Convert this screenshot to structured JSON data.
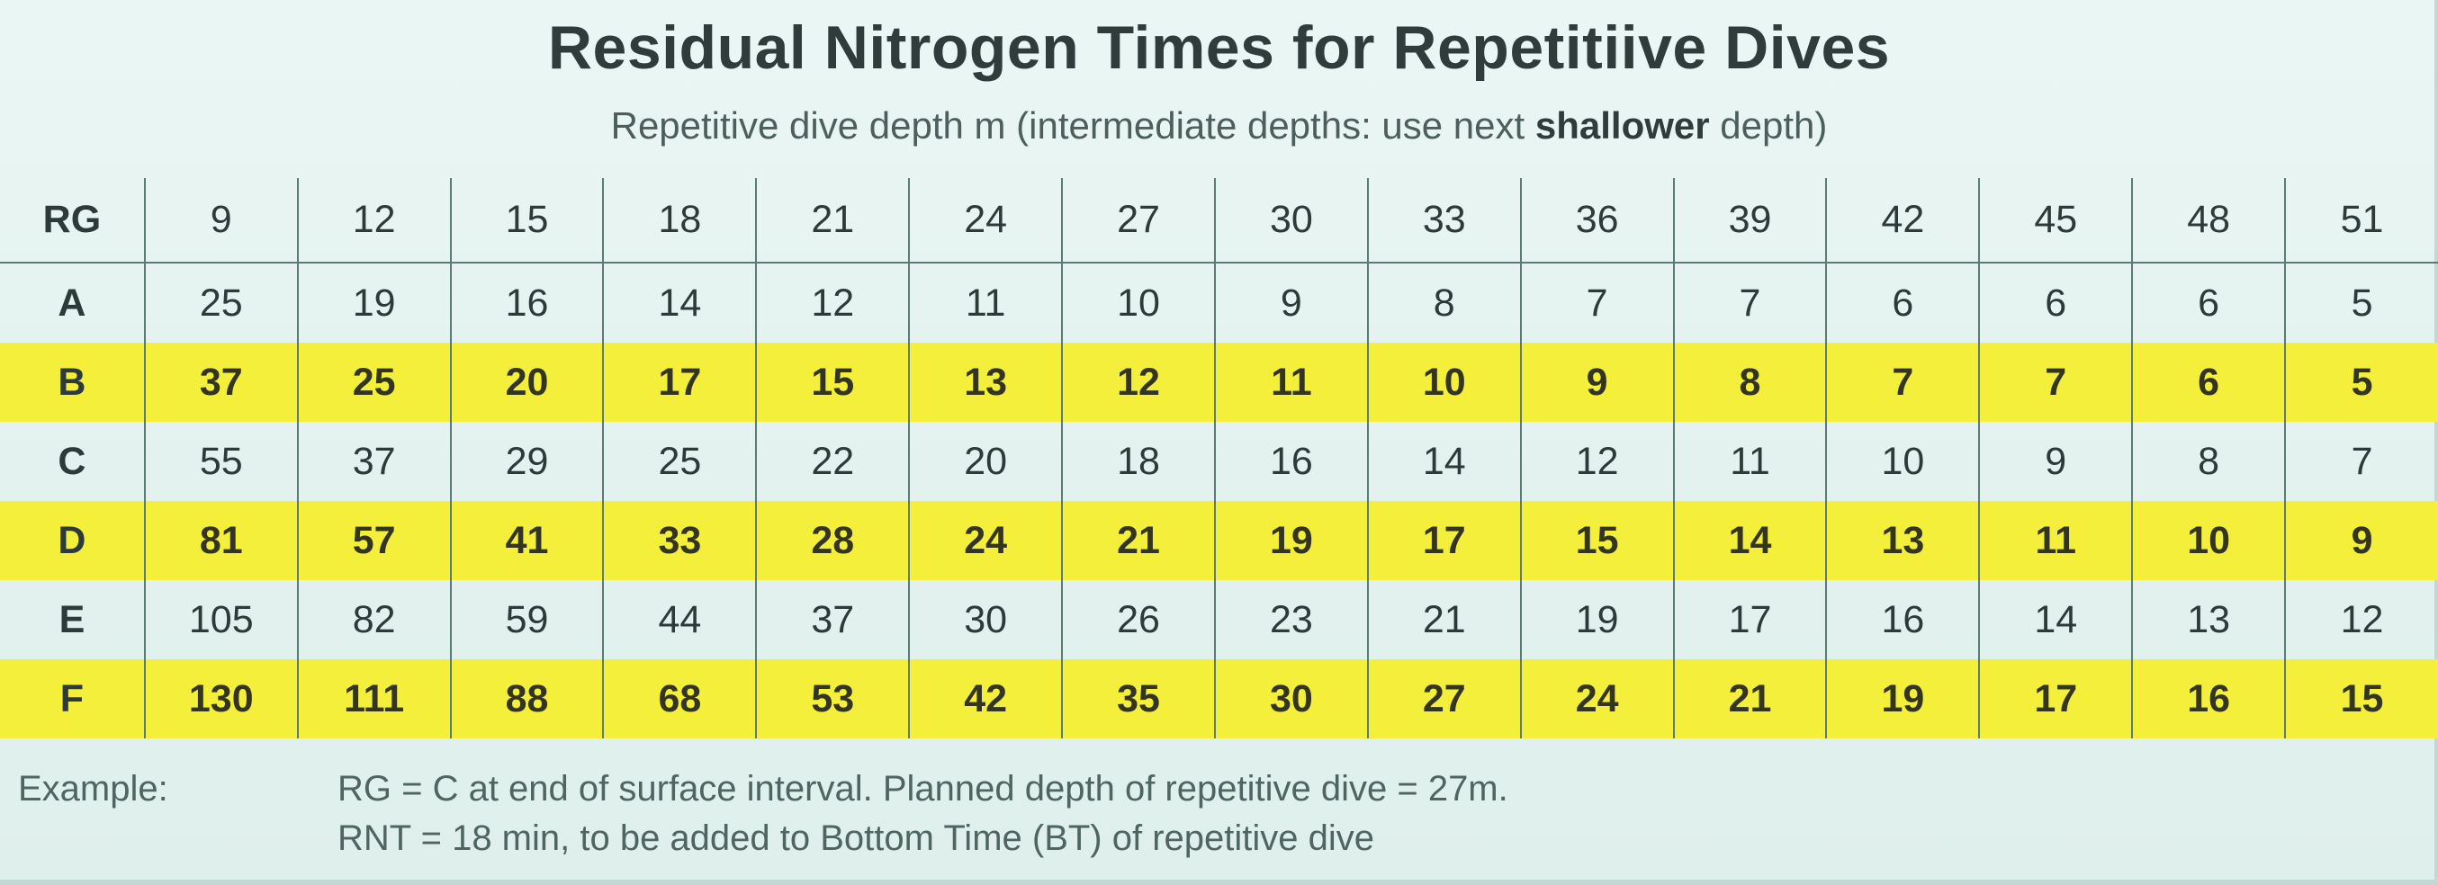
{
  "title": "Residual Nitrogen Times for Repetitiive Dives",
  "subtitle": {
    "before": "Repetitive dive depth m (intermediate depths: use next ",
    "bold": "shallower",
    "after": " depth)"
  },
  "table": {
    "rg_header": "RG",
    "depths": [
      "9",
      "12",
      "15",
      "18",
      "21",
      "24",
      "27",
      "30",
      "33",
      "36",
      "39",
      "42",
      "45",
      "48",
      "51"
    ],
    "rows": [
      {
        "rg": "A",
        "values": [
          "25",
          "19",
          "16",
          "14",
          "12",
          "11",
          "10",
          "9",
          "8",
          "7",
          "7",
          "6",
          "6",
          "6",
          "5"
        ]
      },
      {
        "rg": "B",
        "values": [
          "37",
          "25",
          "20",
          "17",
          "15",
          "13",
          "12",
          "11",
          "10",
          "9",
          "8",
          "7",
          "7",
          "6",
          "5"
        ]
      },
      {
        "rg": "C",
        "values": [
          "55",
          "37",
          "29",
          "25",
          "22",
          "20",
          "18",
          "16",
          "14",
          "12",
          "11",
          "10",
          "9",
          "8",
          "7"
        ]
      },
      {
        "rg": "D",
        "values": [
          "81",
          "57",
          "41",
          "33",
          "28",
          "24",
          "21",
          "19",
          "17",
          "15",
          "14",
          "13",
          "11",
          "10",
          "9"
        ]
      },
      {
        "rg": "E",
        "values": [
          "105",
          "82",
          "59",
          "44",
          "37",
          "30",
          "26",
          "23",
          "21",
          "19",
          "17",
          "16",
          "14",
          "13",
          "12"
        ]
      },
      {
        "rg": "F",
        "values": [
          "130",
          "111",
          "88",
          "68",
          "53",
          "42",
          "35",
          "30",
          "27",
          "24",
          "21",
          "19",
          "17",
          "16",
          "15"
        ]
      }
    ]
  },
  "example": {
    "label": "Example:",
    "line1": "RG = C at end of surface interval. Planned depth of repetitive dive = 27m.",
    "line2": "RNT = 18 min, to be added to Bottom Time (BT) of repetitive dive"
  },
  "colors": {
    "background": "#e6f4f2",
    "highlight": "#f3ef3a",
    "text": "#2c3b3a"
  }
}
